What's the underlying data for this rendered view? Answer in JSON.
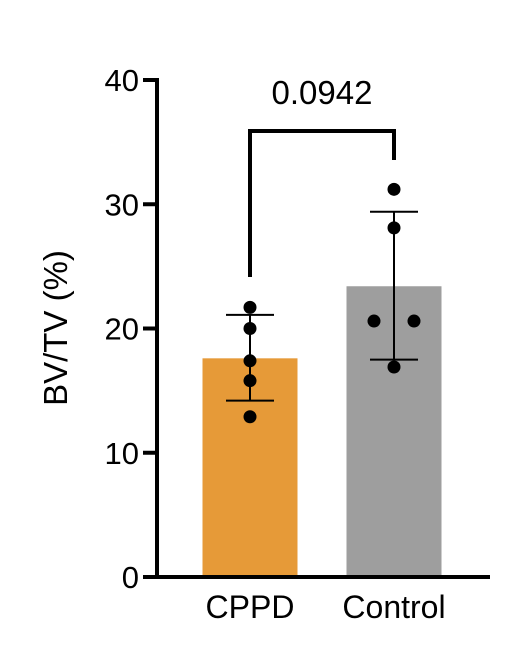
{
  "chart_data": {
    "type": "bar",
    "ylabel": "BV/TV (%)",
    "xlabel": "",
    "ylim": [
      0,
      40
    ],
    "yticks": [
      0,
      10,
      20,
      30,
      40
    ],
    "grid": false,
    "categories": [
      "CPPD",
      "Control"
    ],
    "colors": [
      "#E69A38",
      "#9E9E9E"
    ],
    "values": [
      17.6,
      23.4
    ],
    "error_low": [
      14.2,
      17.5
    ],
    "error_high": [
      21.1,
      29.4
    ],
    "points": [
      [
        21.7,
        20.0,
        17.4,
        15.8,
        12.9
      ],
      [
        31.2,
        28.1,
        20.6,
        20.6,
        16.9
      ]
    ],
    "comparison": {
      "groups": [
        0,
        1
      ],
      "label": "0.0942"
    }
  }
}
